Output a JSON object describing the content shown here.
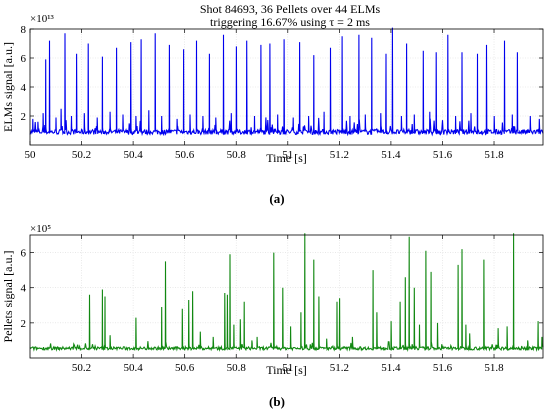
{
  "figure": {
    "title_line1": "Shot 84693, 36 Pellets over 44 ELMs",
    "title_line2": "triggering 16.67% using τ = 2 ms"
  },
  "chart_data": [
    {
      "type": "line",
      "panel_caption": "(a)",
      "xlabel": "Time [s]",
      "ylabel": "ELMs signal [a.u.]",
      "exponent_label": "×10¹³",
      "xlim": [
        50.0,
        51.99
      ],
      "ylim": [
        0,
        8
      ],
      "xticks": [
        50,
        50.2,
        50.4,
        50.6,
        50.8,
        51,
        51.2,
        51.4,
        51.6,
        51.8
      ],
      "xtick_labels": [
        "50",
        "50.2",
        "50.4",
        "50.6",
        "50.8",
        "51",
        "51.2",
        "51.4",
        "51.6",
        "51.8"
      ],
      "yticks": [
        2,
        4,
        6,
        8
      ],
      "ytick_labels": [
        "2",
        "4",
        "6",
        "8"
      ],
      "grid": true,
      "color": "#0000ee",
      "baseline": 0.9,
      "peaks": [
        {
          "x": 50.01,
          "y": 1.8
        },
        {
          "x": 50.03,
          "y": 1.6
        },
        {
          "x": 50.05,
          "y": 2.2
        },
        {
          "x": 50.06,
          "y": 5.9
        },
        {
          "x": 50.075,
          "y": 7.2
        },
        {
          "x": 50.1,
          "y": 1.9
        },
        {
          "x": 50.12,
          "y": 2.5
        },
        {
          "x": 50.135,
          "y": 7.7
        },
        {
          "x": 50.16,
          "y": 2.0
        },
        {
          "x": 50.18,
          "y": 6.3
        },
        {
          "x": 50.21,
          "y": 2.2
        },
        {
          "x": 50.225,
          "y": 7.0
        },
        {
          "x": 50.26,
          "y": 1.9
        },
        {
          "x": 50.28,
          "y": 6.1
        },
        {
          "x": 50.31,
          "y": 2.3
        },
        {
          "x": 50.335,
          "y": 6.7
        },
        {
          "x": 50.36,
          "y": 2.1
        },
        {
          "x": 50.39,
          "y": 7.1
        },
        {
          "x": 50.41,
          "y": 2.0
        },
        {
          "x": 50.43,
          "y": 7.3
        },
        {
          "x": 50.46,
          "y": 2.4
        },
        {
          "x": 50.485,
          "y": 7.7
        },
        {
          "x": 50.51,
          "y": 2.0
        },
        {
          "x": 50.54,
          "y": 6.9
        },
        {
          "x": 50.57,
          "y": 1.8
        },
        {
          "x": 50.595,
          "y": 6.6
        },
        {
          "x": 50.62,
          "y": 2.1
        },
        {
          "x": 50.645,
          "y": 7.2
        },
        {
          "x": 50.67,
          "y": 2.0
        },
        {
          "x": 50.695,
          "y": 6.3
        },
        {
          "x": 50.72,
          "y": 1.9
        },
        {
          "x": 50.75,
          "y": 7.6
        },
        {
          "x": 50.78,
          "y": 2.2
        },
        {
          "x": 50.8,
          "y": 6.8
        },
        {
          "x": 50.84,
          "y": 7.2
        },
        {
          "x": 50.87,
          "y": 2.0
        },
        {
          "x": 50.895,
          "y": 6.9
        },
        {
          "x": 50.93,
          "y": 7.0
        },
        {
          "x": 50.96,
          "y": 2.1
        },
        {
          "x": 50.985,
          "y": 7.3
        },
        {
          "x": 51.02,
          "y": 1.9
        },
        {
          "x": 51.045,
          "y": 7.1
        },
        {
          "x": 51.08,
          "y": 2.0
        },
        {
          "x": 51.1,
          "y": 6.2
        },
        {
          "x": 51.14,
          "y": 2.3
        },
        {
          "x": 51.165,
          "y": 6.7
        },
        {
          "x": 51.21,
          "y": 7.5
        },
        {
          "x": 51.24,
          "y": 2.0
        },
        {
          "x": 51.275,
          "y": 7.6
        },
        {
          "x": 51.3,
          "y": 2.1
        },
        {
          "x": 51.325,
          "y": 7.4
        },
        {
          "x": 51.36,
          "y": 2.2
        },
        {
          "x": 51.38,
          "y": 6.3
        },
        {
          "x": 51.405,
          "y": 8.1
        },
        {
          "x": 51.44,
          "y": 2.0
        },
        {
          "x": 51.46,
          "y": 7.0
        },
        {
          "x": 51.49,
          "y": 2.1
        },
        {
          "x": 51.525,
          "y": 6.5
        },
        {
          "x": 51.55,
          "y": 2.3
        },
        {
          "x": 51.575,
          "y": 6.4
        },
        {
          "x": 51.62,
          "y": 7.6
        },
        {
          "x": 51.65,
          "y": 2.0
        },
        {
          "x": 51.675,
          "y": 6.4
        },
        {
          "x": 51.71,
          "y": 2.2
        },
        {
          "x": 51.735,
          "y": 6.3
        },
        {
          "x": 51.77,
          "y": 6.9
        },
        {
          "x": 51.8,
          "y": 2.0
        },
        {
          "x": 51.84,
          "y": 7.2
        },
        {
          "x": 51.87,
          "y": 2.1
        },
        {
          "x": 51.89,
          "y": 6.4
        },
        {
          "x": 51.94,
          "y": 2.0
        },
        {
          "x": 51.975,
          "y": 1.8
        }
      ]
    },
    {
      "type": "line",
      "panel_caption": "(b)",
      "xlabel": "Time [s]",
      "ylabel": "Pellets signal [a.u.]",
      "exponent_label": "×10⁵",
      "xlim": [
        50.0,
        51.99
      ],
      "ylim": [
        0,
        7
      ],
      "xticks": [
        50.2,
        50.4,
        50.6,
        50.8,
        51,
        51.2,
        51.4,
        51.6,
        51.8
      ],
      "xtick_labels": [
        "50.2",
        "50.4",
        "50.6",
        "50.8",
        "51",
        "51.2",
        "51.4",
        "51.6",
        "51.8"
      ],
      "yticks": [
        2,
        4,
        6
      ],
      "ytick_labels": [
        "2",
        "4",
        "6"
      ],
      "grid": true,
      "color": "#118811",
      "baseline": 0.55,
      "peaks": [
        {
          "x": 50.23,
          "y": 3.6
        },
        {
          "x": 50.28,
          "y": 3.9
        },
        {
          "x": 50.29,
          "y": 3.5
        },
        {
          "x": 50.31,
          "y": 1.3
        },
        {
          "x": 50.41,
          "y": 2.3
        },
        {
          "x": 50.51,
          "y": 2.9
        },
        {
          "x": 50.525,
          "y": 5.5
        },
        {
          "x": 50.59,
          "y": 2.8
        },
        {
          "x": 50.615,
          "y": 3.3
        },
        {
          "x": 50.63,
          "y": 3.8
        },
        {
          "x": 50.66,
          "y": 1.5
        },
        {
          "x": 50.71,
          "y": 1.2
        },
        {
          "x": 50.755,
          "y": 3.7
        },
        {
          "x": 50.765,
          "y": 3.6
        },
        {
          "x": 50.775,
          "y": 5.9
        },
        {
          "x": 50.79,
          "y": 1.9
        },
        {
          "x": 50.815,
          "y": 2.2
        },
        {
          "x": 50.83,
          "y": 3.2
        },
        {
          "x": 50.86,
          "y": 1.0
        },
        {
          "x": 50.88,
          "y": 1.2
        },
        {
          "x": 50.945,
          "y": 6.0
        },
        {
          "x": 50.98,
          "y": 4.0
        },
        {
          "x": 51.01,
          "y": 1.8
        },
        {
          "x": 51.05,
          "y": 2.6
        },
        {
          "x": 51.065,
          "y": 7.1
        },
        {
          "x": 51.1,
          "y": 5.6
        },
        {
          "x": 51.12,
          "y": 3.5
        },
        {
          "x": 51.15,
          "y": 1.1
        },
        {
          "x": 51.19,
          "y": 3.2
        },
        {
          "x": 51.2,
          "y": 3.4
        },
        {
          "x": 51.25,
          "y": 1.2
        },
        {
          "x": 51.33,
          "y": 5.0
        },
        {
          "x": 51.345,
          "y": 2.6
        },
        {
          "x": 51.4,
          "y": 2.1
        },
        {
          "x": 51.435,
          "y": 3.2
        },
        {
          "x": 51.455,
          "y": 4.6
        },
        {
          "x": 51.47,
          "y": 6.9
        },
        {
          "x": 51.49,
          "y": 4.0
        },
        {
          "x": 51.51,
          "y": 1.9
        },
        {
          "x": 51.535,
          "y": 6.1
        },
        {
          "x": 51.555,
          "y": 4.9
        },
        {
          "x": 51.58,
          "y": 2.0
        },
        {
          "x": 51.66,
          "y": 5.3
        },
        {
          "x": 51.675,
          "y": 6.2
        },
        {
          "x": 51.69,
          "y": 1.9
        },
        {
          "x": 51.705,
          "y": 1.4
        },
        {
          "x": 51.76,
          "y": 5.6
        },
        {
          "x": 51.815,
          "y": 1.7
        },
        {
          "x": 51.85,
          "y": 1.8
        },
        {
          "x": 51.875,
          "y": 7.1
        },
        {
          "x": 51.93,
          "y": 1.0
        },
        {
          "x": 51.97,
          "y": 2.1
        },
        {
          "x": 51.985,
          "y": 1.2
        }
      ]
    }
  ]
}
